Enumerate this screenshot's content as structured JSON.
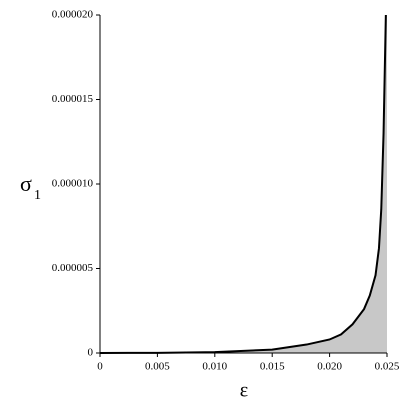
{
  "chart_data": {
    "type": "line",
    "x_label": "ε",
    "y_label": "σ",
    "y_label_subscript": "1",
    "x": [
      0,
      0.005,
      0.01,
      0.015,
      0.018,
      0.02,
      0.021,
      0.022,
      0.023,
      0.0235,
      0.024,
      0.0243,
      0.0245,
      0.0247,
      0.0249
    ],
    "series": [
      {
        "color": "#000000",
        "fill": "#c8c8c8",
        "values": [
          0,
          1e-08,
          5e-08,
          2e-07,
          5e-07,
          8e-07,
          1.1e-06,
          1.7e-06,
          2.6e-06,
          3.4e-06,
          4.6e-06,
          6.2e-06,
          8.5e-06,
          1.3e-05,
          2e-05
        ]
      }
    ],
    "xlim": [
      0,
      0.025
    ],
    "ylim": [
      0,
      2e-05
    ],
    "xticks": [
      0,
      0.005,
      {
        "value": 0.01,
        "label": "0.010"
      },
      0.015,
      {
        "value": 0.02,
        "label": "0.020"
      },
      0.025
    ],
    "yticks": [
      0,
      5e-06,
      {
        "value": 1e-05,
        "label": "0.000010"
      },
      1.5e-05,
      {
        "value": 2e-05,
        "label": "0.000020"
      }
    ]
  }
}
